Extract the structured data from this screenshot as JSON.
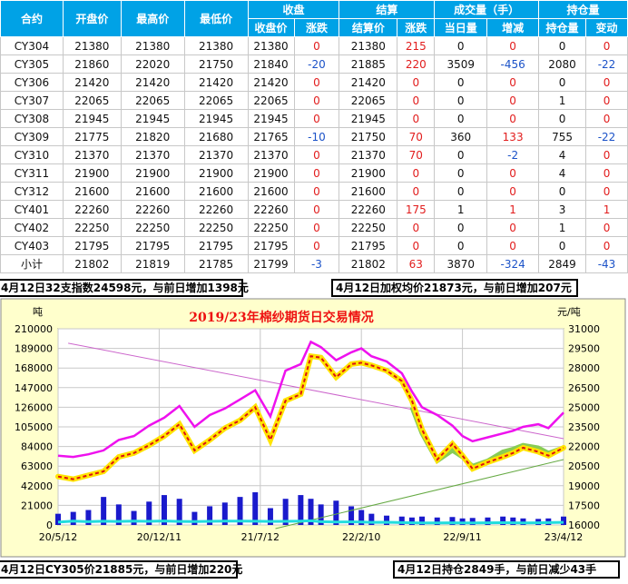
{
  "table": {
    "header_groups": [
      "合约",
      "开盘价",
      "最高价",
      "最低价",
      "收盘",
      "结算",
      "成交量（手）",
      "持仓量"
    ],
    "sub_headers": [
      "收盘价",
      "涨跌",
      "结算价",
      "涨跌",
      "当日量",
      "增减",
      "持仓量",
      "变动"
    ],
    "rows": [
      {
        "contract": "CY304",
        "open": "21380",
        "high": "21380",
        "low": "21380",
        "close": "21380",
        "close_chg": "0",
        "settle": "21380",
        "settle_chg": "215",
        "volume": "0",
        "vol_chg": "0",
        "oi": "0",
        "oi_chg": "0"
      },
      {
        "contract": "CY305",
        "open": "21860",
        "high": "22020",
        "low": "21750",
        "close": "21840",
        "close_chg": "-20",
        "settle": "21885",
        "settle_chg": "220",
        "volume": "3509",
        "vol_chg": "-456",
        "oi": "2080",
        "oi_chg": "-22"
      },
      {
        "contract": "CY306",
        "open": "21420",
        "high": "21420",
        "low": "21420",
        "close": "21420",
        "close_chg": "0",
        "settle": "21420",
        "settle_chg": "0",
        "volume": "0",
        "vol_chg": "0",
        "oi": "0",
        "oi_chg": "0"
      },
      {
        "contract": "CY307",
        "open": "22065",
        "high": "22065",
        "low": "22065",
        "close": "22065",
        "close_chg": "0",
        "settle": "22065",
        "settle_chg": "0",
        "volume": "0",
        "vol_chg": "0",
        "oi": "1",
        "oi_chg": "0"
      },
      {
        "contract": "CY308",
        "open": "21945",
        "high": "21945",
        "low": "21945",
        "close": "21945",
        "close_chg": "0",
        "settle": "21945",
        "settle_chg": "0",
        "volume": "0",
        "vol_chg": "0",
        "oi": "0",
        "oi_chg": "0"
      },
      {
        "contract": "CY309",
        "open": "21775",
        "high": "21820",
        "low": "21680",
        "close": "21765",
        "close_chg": "-10",
        "settle": "21750",
        "settle_chg": "70",
        "volume": "360",
        "vol_chg": "133",
        "oi": "755",
        "oi_chg": "-22"
      },
      {
        "contract": "CY310",
        "open": "21370",
        "high": "21370",
        "low": "21370",
        "close": "21370",
        "close_chg": "0",
        "settle": "21370",
        "settle_chg": "70",
        "volume": "0",
        "vol_chg": "-2",
        "oi": "4",
        "oi_chg": "0"
      },
      {
        "contract": "CY311",
        "open": "21900",
        "high": "21900",
        "low": "21900",
        "close": "21900",
        "close_chg": "0",
        "settle": "21900",
        "settle_chg": "0",
        "volume": "0",
        "vol_chg": "0",
        "oi": "4",
        "oi_chg": "0"
      },
      {
        "contract": "CY312",
        "open": "21600",
        "high": "21600",
        "low": "21600",
        "close": "21600",
        "close_chg": "0",
        "settle": "21600",
        "settle_chg": "0",
        "volume": "0",
        "vol_chg": "0",
        "oi": "0",
        "oi_chg": "0"
      },
      {
        "contract": "CY401",
        "open": "22260",
        "high": "22260",
        "low": "22260",
        "close": "22260",
        "close_chg": "0",
        "settle": "22260",
        "settle_chg": "175",
        "volume": "1",
        "vol_chg": "1",
        "oi": "3",
        "oi_chg": "1"
      },
      {
        "contract": "CY402",
        "open": "22250",
        "high": "22250",
        "low": "22250",
        "close": "22250",
        "close_chg": "0",
        "settle": "22250",
        "settle_chg": "0",
        "volume": "0",
        "vol_chg": "0",
        "oi": "1",
        "oi_chg": "0"
      },
      {
        "contract": "CY403",
        "open": "21795",
        "high": "21795",
        "low": "21795",
        "close": "21795",
        "close_chg": "0",
        "settle": "21795",
        "settle_chg": "0",
        "volume": "0",
        "vol_chg": "0",
        "oi": "0",
        "oi_chg": "0"
      },
      {
        "contract": "小计",
        "open": "21802",
        "high": "21819",
        "low": "21785",
        "close": "21799",
        "close_chg": "-3",
        "settle": "21802",
        "settle_chg": "63",
        "volume": "3870",
        "vol_chg": "-324",
        "oi": "2849",
        "oi_chg": "-43"
      }
    ]
  },
  "notes": {
    "index_note": "4月12日32支指数24598元，与前日增加1398元",
    "weighted_note": "4月12日加权均价21873元，与前日增加207元",
    "cy305_note": "4月12日CY305价21885元，与前日增加220元",
    "oi_note": "4月12日持仓2849手，与前日减少43手"
  },
  "colors": {
    "header_bg": "#00a2e6",
    "chart_bg": "#ffffcc",
    "up": "#e21d1d",
    "down": "#1b52c8",
    "index_line": "#ee11ee",
    "weighted_line": "#dd1111",
    "weighted_glow": "#ffe400",
    "cy305_line": "#88cc55",
    "volume_bar": "#1a1acc",
    "oi_line": "#22dddd"
  },
  "chart_data": {
    "type": "line",
    "title": "2019/23年棉纱期货日交易情况",
    "ylabel_left": "吨",
    "ylabel_right": "元/吨",
    "yticks_left": [
      "210000",
      "189000",
      "168000",
      "147000",
      "126000",
      "105000",
      "84000",
      "63000",
      "42000",
      "21000",
      "0"
    ],
    "yticks_right": [
      "31000",
      "29500",
      "28000",
      "26500",
      "25000",
      "23500",
      "22000",
      "20500",
      "19000",
      "17500",
      "16000"
    ],
    "xticks": [
      "20/5/12",
      "20/12/11",
      "21/7/12",
      "22/2/10",
      "22/9/11",
      "23/4/12"
    ],
    "ylim_left": [
      0,
      210000
    ],
    "ylim_right": [
      16000,
      31000
    ],
    "x_index": [
      0,
      0.03,
      0.06,
      0.09,
      0.12,
      0.15,
      0.18,
      0.21,
      0.24,
      0.27,
      0.3,
      0.33,
      0.36,
      0.39,
      0.42,
      0.45,
      0.48,
      0.5,
      0.52,
      0.55,
      0.58,
      0.6,
      0.62,
      0.65,
      0.68,
      0.7,
      0.72,
      0.75,
      0.78,
      0.8,
      0.82,
      0.85,
      0.88,
      0.9,
      0.92,
      0.95,
      0.97,
      1.0
    ],
    "series": [
      {
        "key": "index",
        "values": [
          21300,
          21200,
          21400,
          21700,
          22500,
          22800,
          23600,
          24200,
          25100,
          23500,
          24400,
          24900,
          25600,
          26300,
          24300,
          27800,
          28300,
          30000,
          29600,
          28600,
          29200,
          29500,
          28900,
          28500,
          27600,
          26200,
          25000,
          24400,
          23600,
          22800,
          22400,
          22700,
          23000,
          23200,
          23500,
          23700,
          23400,
          24600
        ]
      },
      {
        "key": "weighted",
        "values": [
          19700,
          19500,
          19800,
          20100,
          21200,
          21500,
          22100,
          22800,
          23700,
          21700,
          22500,
          23400,
          24000,
          25000,
          22500,
          25500,
          26000,
          28900,
          28800,
          27300,
          28300,
          28400,
          28200,
          27800,
          27000,
          25500,
          23300,
          21000,
          22200,
          21300,
          20300,
          20800,
          21200,
          21500,
          21900,
          21600,
          21300,
          21900
        ]
      },
      {
        "key": "cy305",
        "values": [
          null,
          null,
          null,
          null,
          null,
          null,
          null,
          null,
          null,
          null,
          null,
          null,
          null,
          null,
          null,
          null,
          null,
          null,
          null,
          null,
          null,
          null,
          null,
          null,
          null,
          25000,
          23000,
          20900,
          21700,
          21200,
          20500,
          20900,
          21600,
          21800,
          22100,
          21900,
          21500,
          21900
        ]
      },
      {
        "key": "volume",
        "values": [
          12000,
          14000,
          16000,
          30000,
          22000,
          15000,
          25000,
          32000,
          28000,
          14000,
          20000,
          24000,
          30000,
          35000,
          18000,
          28000,
          32000,
          28000,
          22000,
          26000,
          20000,
          16000,
          12000,
          10000,
          9000,
          8000,
          9000,
          8000,
          8500,
          7000,
          7500,
          8000,
          9000,
          8000,
          7000,
          6500,
          7000,
          9000
        ]
      },
      {
        "key": "oi",
        "values": [
          3000,
          4200,
          3500,
          4000,
          3800,
          4100,
          3900,
          4300,
          3800,
          3600,
          3900,
          4100,
          4200,
          4000,
          3800,
          3900,
          4200,
          4500,
          3500,
          3200,
          3300,
          3100,
          2800,
          2900,
          2500,
          2300,
          2200,
          2100,
          2300,
          2100,
          2200,
          2300,
          2400,
          2300,
          2200,
          2300,
          2500,
          2849
        ]
      }
    ]
  }
}
